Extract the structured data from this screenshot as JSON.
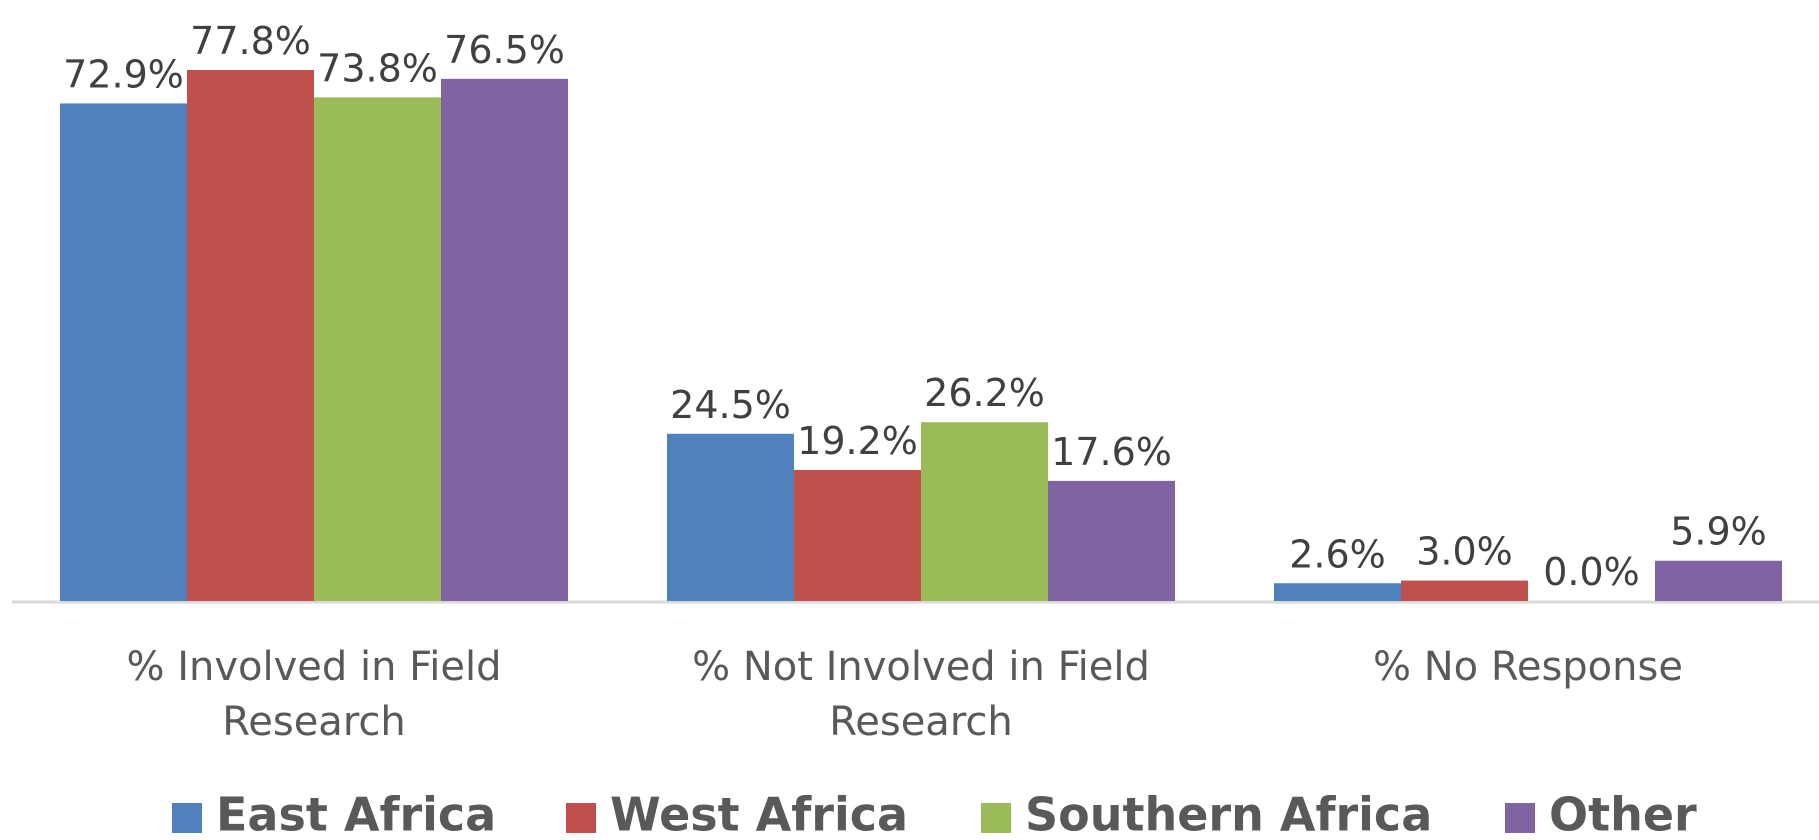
{
  "chart_data": {
    "type": "bar",
    "categories": [
      "% Involved in Field Research",
      "% Not Involved in Field Research",
      "% No Response"
    ],
    "series": [
      {
        "name": "East Africa",
        "color": "#4f81bd",
        "values": [
          72.9,
          24.5,
          2.6
        ],
        "value_labels": [
          "72.9%",
          "24.5%",
          "2.6%"
        ]
      },
      {
        "name": "West Africa",
        "color": "#c0504d",
        "values": [
          77.8,
          19.2,
          3.0
        ],
        "value_labels": [
          "77.8%",
          "19.2%",
          "3.0%"
        ]
      },
      {
        "name": "Southern Africa",
        "color": "#9bbb59",
        "values": [
          73.8,
          26.2,
          0.0
        ],
        "value_labels": [
          "73.8%",
          "26.2%",
          "0.0%"
        ]
      },
      {
        "name": "Other",
        "color": "#8064a2",
        "values": [
          76.5,
          17.6,
          5.9
        ],
        "value_labels": [
          "76.5%",
          "17.6%",
          "5.9%"
        ]
      }
    ],
    "legend": "bottom"
  }
}
